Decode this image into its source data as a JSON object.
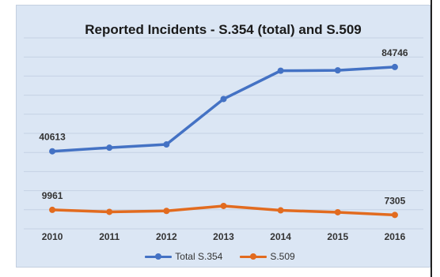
{
  "chart_data": {
    "type": "line",
    "title": "Reported Incidents - S.354 (total) and S.509",
    "categories": [
      "2010",
      "2011",
      "2012",
      "2013",
      "2014",
      "2015",
      "2016"
    ],
    "series": [
      {
        "name": "Total S.354",
        "values": [
          40613,
          42500,
          44200,
          68000,
          82800,
          83000,
          84746
        ],
        "color": "#4472c4"
      },
      {
        "name": "S.509",
        "values": [
          9961,
          8900,
          9400,
          12000,
          9700,
          8700,
          7305
        ],
        "color": "#e26b1f"
      }
    ],
    "data_labels": [
      {
        "series": 0,
        "index": 0,
        "text": "40613"
      },
      {
        "series": 0,
        "index": 6,
        "text": "84746"
      },
      {
        "series": 1,
        "index": 0,
        "text": "9961"
      },
      {
        "series": 1,
        "index": 6,
        "text": "7305"
      }
    ],
    "ylim": [
      0,
      100000
    ],
    "grid": true,
    "legend": "bottom",
    "colors": {
      "gridline": "#c5d2e4",
      "background": "#dbe6f4"
    }
  }
}
